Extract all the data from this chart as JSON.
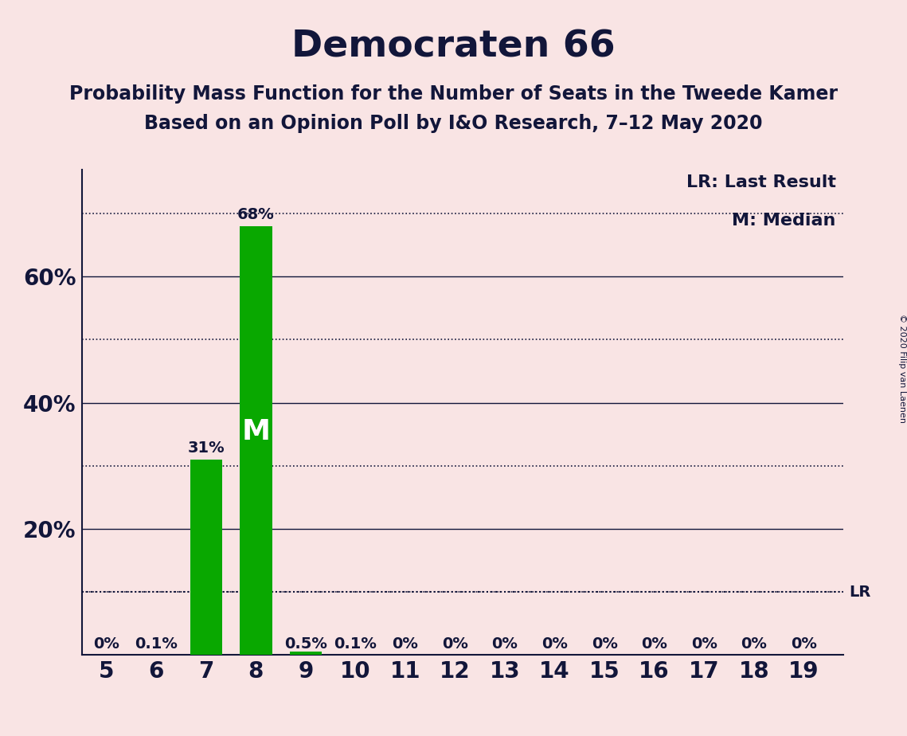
{
  "title": "Democraten 66",
  "subtitle1": "Probability Mass Function for the Number of Seats in the Tweede Kamer",
  "subtitle2": "Based on an Opinion Poll by I&O Research, 7–12 May 2020",
  "copyright": "© 2020 Filip van Laenen",
  "seats": [
    5,
    6,
    7,
    8,
    9,
    10,
    11,
    12,
    13,
    14,
    15,
    16,
    17,
    18,
    19
  ],
  "probabilities": [
    0.0,
    0.001,
    0.31,
    0.68,
    0.005,
    0.001,
    0.0,
    0.0,
    0.0,
    0.0,
    0.0,
    0.0,
    0.0,
    0.0,
    0.0
  ],
  "labels": [
    "0%",
    "0.1%",
    "31%",
    "68%",
    "0.5%",
    "0.1%",
    "0%",
    "0%",
    "0%",
    "0%",
    "0%",
    "0%",
    "0%",
    "0%",
    "0%"
  ],
  "bar_color": "#09a800",
  "background_color": "#f9e4e4",
  "text_color": "#12163a",
  "median_seat": 8,
  "median_label": "M",
  "lr_value": 0.1,
  "legend_lr": "LR: Last Result",
  "legend_m": "M: Median",
  "solid_yticks": [
    0.2,
    0.4,
    0.6
  ],
  "solid_ytick_labels": [
    "20%",
    "40%",
    "60%"
  ],
  "dotted_yticks": [
    0.1,
    0.3,
    0.5,
    0.7
  ],
  "ylim_max": 0.77,
  "title_fontsize": 34,
  "subtitle_fontsize": 17,
  "label_fontsize": 14,
  "tick_fontsize": 20,
  "legend_fontsize": 16
}
